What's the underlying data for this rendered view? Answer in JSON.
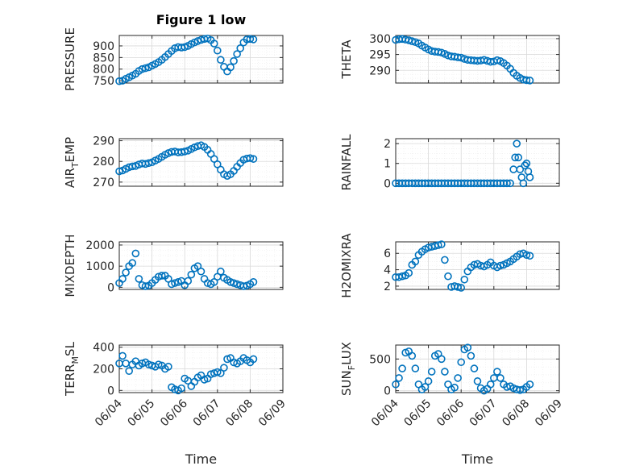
{
  "figure": {
    "title": "Figure 1 low",
    "marker_color": "#0072BD"
  },
  "x_axis": {
    "label": "Time",
    "range": [
      "06/04",
      "06/09"
    ],
    "ticks": [
      "06/04",
      "06/05",
      "06/06",
      "06/07",
      "06/08",
      "06/09"
    ],
    "tick_rotation_deg": -45
  },
  "chart_data": [
    {
      "type": "scatter",
      "ylabel": "PRESSURE",
      "ylim": [
        740,
        945
      ],
      "yticks": [
        750,
        800,
        850,
        900
      ],
      "grid": true,
      "x": [
        0.0,
        0.1,
        0.2,
        0.3,
        0.4,
        0.5,
        0.6,
        0.7,
        0.8,
        0.9,
        1.0,
        1.1,
        1.2,
        1.3,
        1.4,
        1.5,
        1.6,
        1.7,
        1.8,
        1.9,
        2.0,
        2.1,
        2.2,
        2.3,
        2.4,
        2.5,
        2.6,
        2.7,
        2.8,
        2.9,
        3.0,
        3.1,
        3.2,
        3.3,
        3.4,
        3.5,
        3.6,
        3.7,
        3.8,
        3.9,
        4.0,
        4.1
      ],
      "y": [
        748,
        750,
        758,
        765,
        772,
        780,
        792,
        800,
        804,
        808,
        815,
        822,
        830,
        840,
        852,
        865,
        878,
        890,
        895,
        893,
        895,
        900,
        908,
        915,
        921,
        926,
        930,
        932,
        925,
        910,
        880,
        840,
        810,
        790,
        808,
        835,
        865,
        890,
        915,
        928,
        930,
        928
      ]
    },
    {
      "type": "scatter",
      "ylabel": "THETA",
      "ylim": [
        286,
        301
      ],
      "yticks": [
        290,
        295,
        300
      ],
      "grid": true,
      "x": [
        0.0,
        0.1,
        0.2,
        0.3,
        0.4,
        0.5,
        0.6,
        0.7,
        0.8,
        0.9,
        1.0,
        1.1,
        1.2,
        1.3,
        1.4,
        1.5,
        1.6,
        1.7,
        1.8,
        1.9,
        2.0,
        2.1,
        2.2,
        2.3,
        2.4,
        2.5,
        2.6,
        2.7,
        2.8,
        2.9,
        3.0,
        3.1,
        3.2,
        3.3,
        3.4,
        3.5,
        3.6,
        3.7,
        3.8,
        3.9,
        4.0,
        4.1
      ],
      "y": [
        299.6,
        299.8,
        299.9,
        299.7,
        299.5,
        299.2,
        298.9,
        298.5,
        297.8,
        297.2,
        296.6,
        296.1,
        295.9,
        295.8,
        295.6,
        295.2,
        294.7,
        294.4,
        294.3,
        294.1,
        294.0,
        293.6,
        293.3,
        293.2,
        293.1,
        293.0,
        293.1,
        293.3,
        293.0,
        292.7,
        292.8,
        293.2,
        292.9,
        292.3,
        291.5,
        290.5,
        289.2,
        288.3,
        287.6,
        287.1,
        286.9,
        286.8
      ]
    },
    {
      "type": "scatter",
      "ylabel": "AIR_TEMP",
      "ylim": [
        268,
        291
      ],
      "yticks": [
        270,
        280,
        290
      ],
      "grid": true,
      "x": [
        0.0,
        0.1,
        0.2,
        0.3,
        0.4,
        0.5,
        0.6,
        0.7,
        0.8,
        0.9,
        1.0,
        1.1,
        1.2,
        1.3,
        1.4,
        1.5,
        1.6,
        1.7,
        1.8,
        1.9,
        2.0,
        2.1,
        2.2,
        2.3,
        2.4,
        2.5,
        2.6,
        2.7,
        2.8,
        2.9,
        3.0,
        3.1,
        3.2,
        3.3,
        3.4,
        3.5,
        3.6,
        3.7,
        3.8,
        3.9,
        4.0,
        4.1
      ],
      "y": [
        275.2,
        275.6,
        276.4,
        277.2,
        277.6,
        277.8,
        278.5,
        279.0,
        278.8,
        279.2,
        279.6,
        280.4,
        281.2,
        282.2,
        283.2,
        284.0,
        284.6,
        284.8,
        284.4,
        284.5,
        284.8,
        285.2,
        286.0,
        286.8,
        287.4,
        287.8,
        287.0,
        285.6,
        283.6,
        281.2,
        278.6,
        276.0,
        273.8,
        273.0,
        273.8,
        275.4,
        277.4,
        279.2,
        280.8,
        281.4,
        281.6,
        281.2
      ]
    },
    {
      "type": "scatter",
      "ylabel": "RAINFALL",
      "ylim": [
        -0.15,
        2.25
      ],
      "yticks": [
        0,
        1,
        2
      ],
      "grid": true,
      "x": [
        0.0,
        0.1,
        0.2,
        0.3,
        0.4,
        0.5,
        0.6,
        0.7,
        0.8,
        0.9,
        1.0,
        1.1,
        1.2,
        1.3,
        1.4,
        1.5,
        1.6,
        1.7,
        1.8,
        1.9,
        2.0,
        2.1,
        2.2,
        2.3,
        2.4,
        2.5,
        2.6,
        2.7,
        2.8,
        2.9,
        3.0,
        3.1,
        3.2,
        3.3,
        3.4,
        3.5,
        3.6,
        3.65,
        3.7,
        3.75,
        3.8,
        3.85,
        3.9,
        3.95,
        4.0,
        4.05,
        4.1
      ],
      "y": [
        0,
        0,
        0,
        0,
        0,
        0,
        0,
        0,
        0,
        0,
        0,
        0,
        0,
        0,
        0,
        0,
        0,
        0,
        0,
        0,
        0,
        0,
        0,
        0,
        0,
        0,
        0,
        0,
        0,
        0,
        0,
        0,
        0,
        0,
        0,
        0,
        0.7,
        1.3,
        2.0,
        1.3,
        0.7,
        0.3,
        0,
        0.9,
        1.0,
        0.6,
        0.3
      ]
    },
    {
      "type": "scatter",
      "ylabel": "MIXDEPTH",
      "ylim": [
        -100,
        2150
      ],
      "yticks": [
        0,
        1000,
        2000
      ],
      "grid": true,
      "x": [
        0.0,
        0.1,
        0.2,
        0.3,
        0.4,
        0.5,
        0.6,
        0.7,
        0.8,
        0.9,
        1.0,
        1.1,
        1.2,
        1.3,
        1.4,
        1.5,
        1.6,
        1.7,
        1.8,
        1.9,
        2.0,
        2.1,
        2.2,
        2.3,
        2.4,
        2.5,
        2.6,
        2.7,
        2.8,
        2.9,
        3.0,
        3.1,
        3.2,
        3.3,
        3.4,
        3.5,
        3.6,
        3.7,
        3.8,
        3.9,
        4.0,
        4.1
      ],
      "y": [
        200,
        400,
        700,
        1000,
        1150,
        1600,
        400,
        100,
        50,
        80,
        200,
        350,
        500,
        550,
        550,
        400,
        150,
        200,
        250,
        300,
        100,
        300,
        600,
        900,
        1000,
        750,
        400,
        200,
        150,
        250,
        500,
        750,
        450,
        350,
        250,
        200,
        150,
        100,
        50,
        80,
        150,
        250
      ]
    },
    {
      "type": "scatter",
      "ylabel": "H2OMIXRA",
      "ylim": [
        1.6,
        7.4
      ],
      "yticks": [
        2,
        4,
        6
      ],
      "grid": true,
      "x": [
        0.0,
        0.1,
        0.2,
        0.3,
        0.4,
        0.5,
        0.6,
        0.7,
        0.8,
        0.9,
        1.0,
        1.1,
        1.2,
        1.3,
        1.4,
        1.5,
        1.6,
        1.7,
        1.8,
        1.9,
        2.0,
        2.1,
        2.2,
        2.3,
        2.4,
        2.5,
        2.6,
        2.7,
        2.8,
        2.9,
        3.0,
        3.1,
        3.2,
        3.3,
        3.4,
        3.5,
        3.6,
        3.7,
        3.8,
        3.9,
        4.0,
        4.1
      ],
      "y": [
        3.1,
        3.1,
        3.2,
        3.3,
        3.6,
        4.6,
        5.0,
        5.8,
        6.2,
        6.5,
        6.7,
        6.8,
        6.9,
        7.0,
        7.1,
        5.2,
        3.2,
        1.9,
        2.0,
        1.9,
        1.8,
        2.8,
        3.8,
        4.3,
        4.6,
        4.7,
        4.5,
        4.4,
        4.6,
        4.9,
        4.5,
        4.3,
        4.5,
        4.6,
        4.8,
        5.0,
        5.3,
        5.6,
        5.9,
        6.0,
        5.8,
        5.7
      ]
    },
    {
      "type": "scatter",
      "ylabel": "TERR_MSL",
      "ylim": [
        -20,
        420
      ],
      "yticks": [
        0,
        200,
        400
      ],
      "grid": true,
      "x": [
        0.0,
        0.1,
        0.2,
        0.3,
        0.4,
        0.5,
        0.6,
        0.7,
        0.8,
        0.9,
        1.0,
        1.1,
        1.2,
        1.3,
        1.4,
        1.5,
        1.6,
        1.7,
        1.8,
        1.9,
        2.0,
        2.1,
        2.2,
        2.3,
        2.4,
        2.5,
        2.6,
        2.7,
        2.8,
        2.9,
        3.0,
        3.1,
        3.2,
        3.3,
        3.4,
        3.5,
        3.6,
        3.7,
        3.8,
        3.9,
        4.0,
        4.1
      ],
      "y": [
        250,
        320,
        250,
        180,
        240,
        270,
        230,
        250,
        260,
        240,
        230,
        220,
        240,
        230,
        200,
        220,
        30,
        10,
        0,
        20,
        110,
        90,
        40,
        80,
        120,
        140,
        100,
        110,
        150,
        160,
        170,
        160,
        210,
        290,
        300,
        260,
        250,
        270,
        300,
        280,
        260,
        290
      ]
    },
    {
      "type": "scatter",
      "ylabel": "SUN_FLUX",
      "ylim": [
        -30,
        720
      ],
      "yticks": [
        0,
        500
      ],
      "grid": true,
      "x": [
        0.0,
        0.1,
        0.2,
        0.3,
        0.4,
        0.5,
        0.6,
        0.7,
        0.8,
        0.9,
        1.0,
        1.1,
        1.2,
        1.3,
        1.4,
        1.5,
        1.6,
        1.7,
        1.8,
        1.9,
        2.0,
        2.1,
        2.2,
        2.3,
        2.4,
        2.5,
        2.6,
        2.7,
        2.8,
        2.9,
        3.0,
        3.1,
        3.2,
        3.3,
        3.4,
        3.5,
        3.6,
        3.7,
        3.8,
        3.9,
        4.0,
        4.1
      ],
      "y": [
        100,
        200,
        350,
        600,
        620,
        550,
        350,
        100,
        20,
        60,
        150,
        300,
        550,
        580,
        500,
        300,
        100,
        20,
        50,
        200,
        450,
        650,
        680,
        550,
        350,
        150,
        40,
        0,
        30,
        100,
        200,
        300,
        200,
        100,
        60,
        70,
        40,
        20,
        10,
        20,
        60,
        100
      ]
    }
  ]
}
